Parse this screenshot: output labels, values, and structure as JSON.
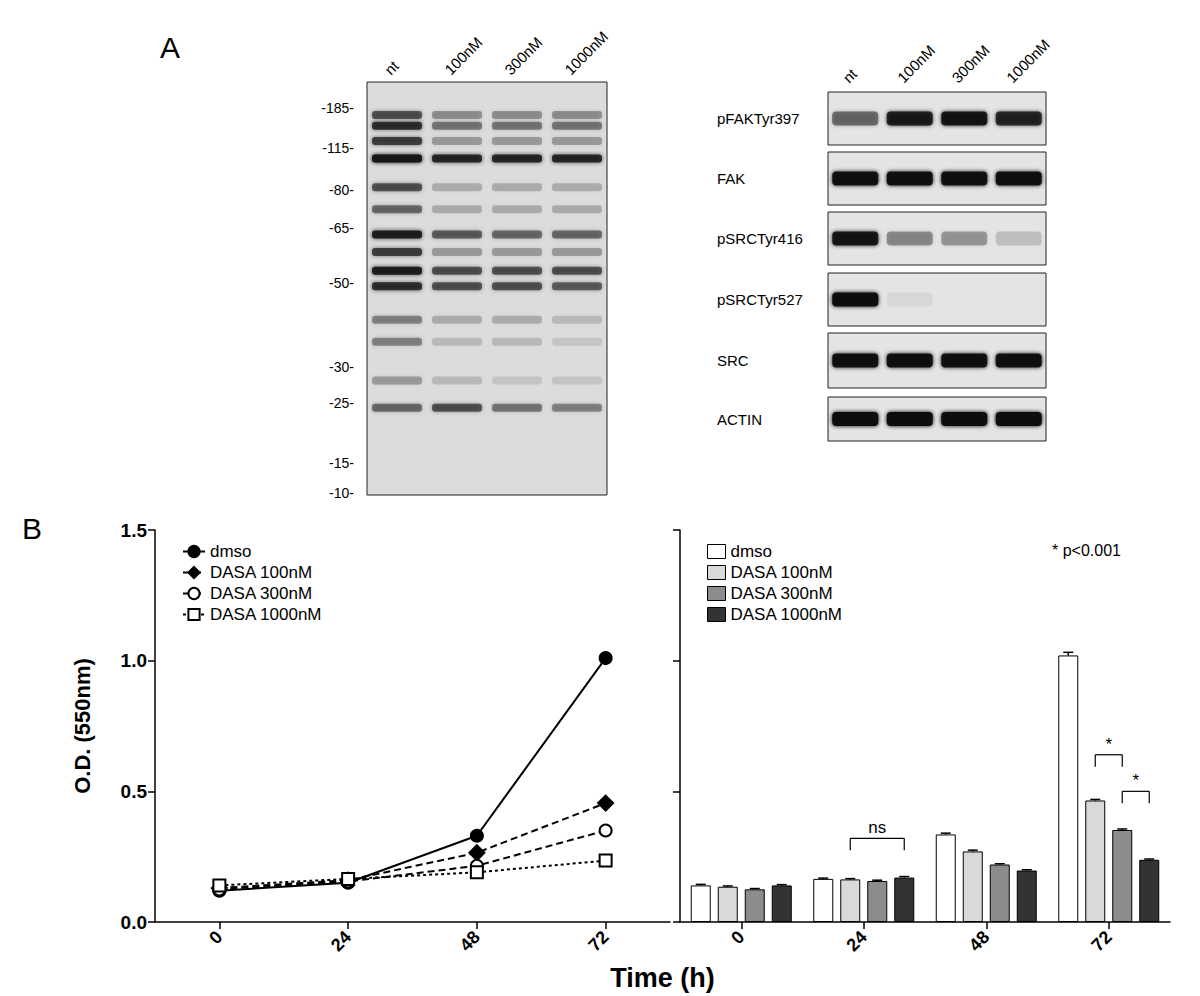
{
  "panel_labels": [
    "A",
    "B"
  ],
  "blots": {
    "lanes": [
      "nt",
      "100nM",
      "300nM",
      "1000nM"
    ],
    "total": {
      "markers": [
        {
          "value": 185,
          "label": "-185-"
        },
        {
          "value": 115,
          "label": "-115-"
        },
        {
          "value": 80,
          "label": "-80-"
        },
        {
          "value": 65,
          "label": "-65-"
        },
        {
          "value": 50,
          "label": "-50-"
        },
        {
          "value": 30,
          "label": "-30-"
        },
        {
          "value": 25,
          "label": "-25-"
        },
        {
          "value": 15,
          "label": "-15-"
        },
        {
          "value": 10,
          "label": "-10-"
        }
      ],
      "bands": [
        {
          "mw": 170,
          "intensity": [
            0.6,
            0.35,
            0.35,
            0.35
          ]
        },
        {
          "mw": 150,
          "intensity": [
            0.8,
            0.45,
            0.45,
            0.45
          ]
        },
        {
          "mw": 125,
          "intensity": [
            0.7,
            0.3,
            0.3,
            0.3
          ]
        },
        {
          "mw": 105,
          "intensity": [
            1.0,
            0.85,
            0.85,
            0.85
          ]
        },
        {
          "mw": 82,
          "intensity": [
            0.6,
            0.2,
            0.2,
            0.2
          ]
        },
        {
          "mw": 72,
          "intensity": [
            0.5,
            0.2,
            0.2,
            0.2
          ]
        },
        {
          "mw": 63,
          "intensity": [
            0.9,
            0.55,
            0.5,
            0.5
          ]
        },
        {
          "mw": 58,
          "intensity": [
            0.7,
            0.3,
            0.3,
            0.3
          ]
        },
        {
          "mw": 53,
          "intensity": [
            0.9,
            0.6,
            0.6,
            0.6
          ]
        },
        {
          "mw": 49,
          "intensity": [
            0.8,
            0.6,
            0.6,
            0.55
          ]
        },
        {
          "mw": 40,
          "intensity": [
            0.4,
            0.2,
            0.2,
            0.15
          ]
        },
        {
          "mw": 35,
          "intensity": [
            0.4,
            0.15,
            0.15,
            0.1
          ]
        },
        {
          "mw": 28,
          "intensity": [
            0.3,
            0.15,
            0.1,
            0.1
          ]
        },
        {
          "mw": 24,
          "intensity": [
            0.5,
            0.6,
            0.45,
            0.4
          ]
        }
      ]
    },
    "probes": [
      {
        "label": "pFAKTyr397",
        "intensity": [
          0.5,
          0.85,
          0.9,
          0.8
        ]
      },
      {
        "label": "FAK",
        "intensity": [
          0.95,
          0.95,
          0.95,
          0.95
        ]
      },
      {
        "label": "pSRCTyr416",
        "intensity": [
          0.9,
          0.35,
          0.3,
          0.15
        ]
      },
      {
        "label": "pSRCTyr527",
        "intensity": [
          1.0,
          0.05,
          0.0,
          0.0
        ]
      },
      {
        "label": "SRC",
        "intensity": [
          0.95,
          0.95,
          0.95,
          0.95
        ]
      },
      {
        "label": "ACTIN",
        "intensity": [
          1.0,
          1.0,
          1.0,
          1.0
        ]
      }
    ]
  },
  "chart_data": [
    {
      "type": "line",
      "x_label": "Time (h)",
      "y_label": "O.D. (550nm)",
      "categories": [
        "0",
        "24",
        "48",
        "72"
      ],
      "ylim": [
        0,
        1.5
      ],
      "yticks": [
        {
          "value": 0,
          "label": "0.0"
        },
        {
          "value": 0.5,
          "label": "0.5"
        },
        {
          "value": 1,
          "label": "1.0"
        },
        {
          "value": 1.5,
          "label": "1.5"
        }
      ],
      "legend": "upper left",
      "series": [
        {
          "name": "dmso",
          "color": "#000000",
          "marker": "filled_circle",
          "line_style": "solid",
          "values": [
            0.12,
            0.15,
            0.33,
            1.01
          ]
        },
        {
          "name": "DASA 100nM",
          "color": "#000000",
          "marker": "diamond",
          "line_style": "dashed",
          "values": [
            0.13,
            0.16,
            0.265,
            0.455
          ]
        },
        {
          "name": "DASA 300nM",
          "color": "#000000",
          "marker": "open_circle",
          "line_style": "dashed",
          "values": [
            0.125,
            0.155,
            0.215,
            0.35
          ]
        },
        {
          "name": "DASA 1000nM",
          "color": "#000000",
          "marker": "open_square",
          "line_style": "dotted",
          "values": [
            0.14,
            0.165,
            0.19,
            0.235
          ]
        }
      ]
    },
    {
      "type": "bar",
      "categories": [
        "0",
        "24",
        "48",
        "72"
      ],
      "ylim": [
        0,
        1.5
      ],
      "yticks": [
        0,
        0.5,
        1,
        1.5
      ],
      "tick_labels": "x",
      "legend": "upper left",
      "note": "* p<0.001",
      "series": [
        {
          "name": "dmso",
          "color": "#ffffff",
          "values": [
            0.14,
            0.165,
            0.335,
            1.02
          ],
          "errors": [
            0.004,
            0.003,
            0.005,
            0.012
          ]
        },
        {
          "name": "DASA 100nM",
          "color": "#d9d9d9",
          "values": [
            0.135,
            0.163,
            0.27,
            0.465
          ],
          "errors": [
            0.003,
            0.003,
            0.005,
            0.004
          ]
        },
        {
          "name": "DASA 300nM",
          "color": "#8c8c8c",
          "values": [
            0.125,
            0.157,
            0.22,
            0.352
          ],
          "errors": [
            0.003,
            0.003,
            0.003,
            0.004
          ]
        },
        {
          "name": "DASA 1000nM",
          "color": "#333333",
          "values": [
            0.14,
            0.17,
            0.197,
            0.238
          ],
          "errors": [
            0.003,
            0.004,
            0.003,
            0.003
          ]
        }
      ],
      "annotations": [
        {
          "text": "ns",
          "category": "24",
          "from": "DASA 100nM",
          "to": "DASA 1000nM",
          "y": 0.32
        },
        {
          "text": "*",
          "category": "72",
          "from": "DASA 100nM",
          "to": "DASA 300nM",
          "y": 0.64
        },
        {
          "text": "*",
          "category": "72",
          "from": "DASA 300nM",
          "to": "DASA 1000nM",
          "y": 0.5
        }
      ]
    }
  ]
}
